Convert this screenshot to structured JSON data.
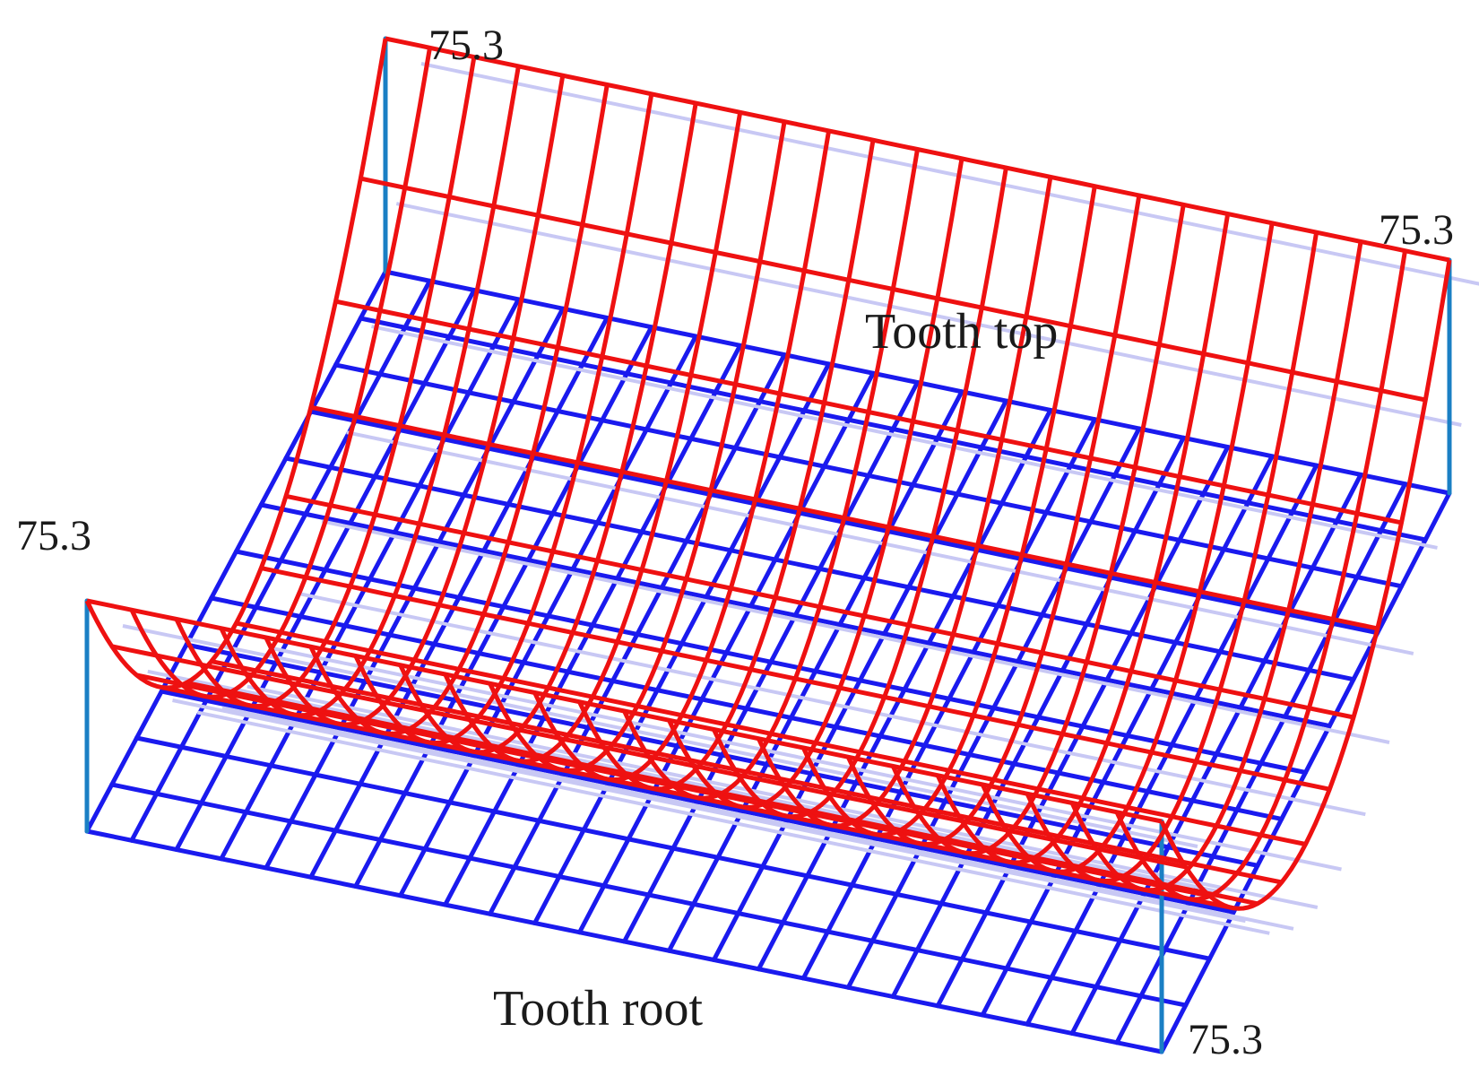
{
  "labels": {
    "corner_back_left": "75.3",
    "corner_back_right": "75.3",
    "corner_front_left": "75.3",
    "corner_front_right": "75.3",
    "tooth_top": "Tooth top",
    "tooth_root": "Tooth root"
  },
  "surface": {
    "profile_divisions": 12,
    "face_width_divisions": 24,
    "corner_height": "75.3"
  },
  "colors": {
    "modified_surface": "#ee1111",
    "base_plane": "#1a1aee",
    "hidden_grid": "#c8c8f4",
    "corner_posts": "#1a7fc4"
  }
}
